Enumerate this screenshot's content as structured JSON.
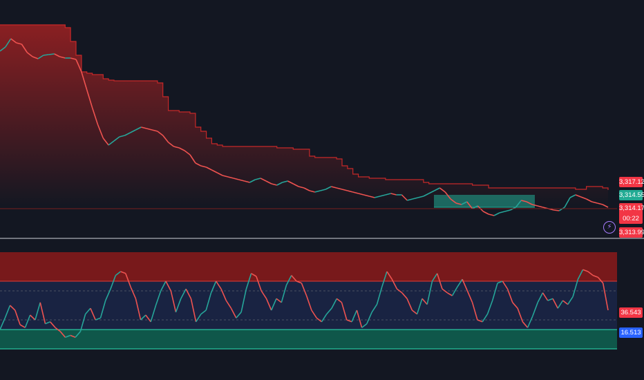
{
  "main_pane": {
    "price_labels": {
      "band_upper": "3,317.124",
      "last_close": "3,314.559",
      "price_low": "3,314.172",
      "countdown": "00:22",
      "price_bottom": "3,313.995"
    },
    "icon": "lightning-icon"
  },
  "indicator_pane": {
    "title": "",
    "value_labels": {
      "current": "36.543",
      "signal": "16.513"
    }
  },
  "colors": {
    "background": "#131722",
    "up": "#26a69a",
    "down": "#ef5350",
    "resistance": "#b22222",
    "support": "#22ab94",
    "mid_zone": "#1b2546"
  },
  "chart_data": [
    {
      "type": "line",
      "title": "",
      "xlabel": "",
      "ylabel": "",
      "series": [
        {
          "values": [
            74,
            68,
            56,
            62,
            64,
            76,
            82,
            85,
            80,
            79,
            78,
            82,
            84,
            84,
            86,
            104,
            130,
            156,
            180,
            200,
            210,
            204,
            198,
            196,
            192,
            188,
            184,
            186,
            188,
            190,
            196,
            206,
            212,
            214,
            218,
            224,
            236,
            240,
            242,
            246,
            250,
            254,
            256,
            258,
            260,
            262,
            264,
            260,
            258,
            262,
            266,
            268,
            264,
            262,
            266,
            270,
            272,
            276,
            278,
            276,
            274,
            270,
            272,
            274,
            276,
            278,
            280,
            282,
            284,
            286,
            284,
            282,
            280,
            282,
            282,
            290,
            288,
            286,
            284,
            280,
            276,
            272,
            278,
            288,
            294,
            296,
            292,
            302,
            298,
            306,
            310,
            312,
            308,
            306,
            304,
            300,
            290,
            292,
            296,
            298,
            300,
            302,
            304,
            305,
            300,
            286,
            282,
            285,
            288,
            292,
            294,
            296,
            300
          ]
        },
        {
          "values": [
            36,
            36,
            36,
            36,
            36,
            36,
            36,
            36,
            36,
            36,
            36,
            36,
            40,
            60,
            80,
            104,
            106,
            108,
            108,
            114,
            116,
            117,
            117,
            117,
            117,
            117,
            117,
            117,
            117,
            120,
            140,
            160,
            160,
            162,
            162,
            164,
            184,
            190,
            200,
            208,
            210,
            212,
            212,
            212,
            212,
            212,
            212,
            212,
            212,
            212,
            212,
            214,
            214,
            214,
            216,
            216,
            216,
            226,
            228,
            228,
            228,
            228,
            230,
            240,
            244,
            252,
            256,
            256,
            258,
            258,
            258,
            260,
            260,
            260,
            260,
            260,
            260,
            260,
            264,
            266,
            266,
            266,
            266,
            266,
            266,
            266,
            266,
            268,
            268,
            268,
            272,
            272,
            272,
            272,
            272,
            272,
            272,
            272,
            272,
            272,
            272,
            272,
            272,
            272,
            272,
            272,
            274,
            274,
            270,
            270,
            270,
            272,
            275
          ]
        }
      ],
      "ylim": [
        3313.995,
        3317.124
      ],
      "last_values": {
        "band_upper": 3317.124,
        "close": 3314.559,
        "low": 3314.172,
        "bottom": 3313.995
      }
    },
    {
      "type": "line",
      "title": "",
      "xlabel": "",
      "ylabel": "",
      "series": [
        {
          "values": [
            20,
            32,
            45,
            40,
            25,
            22,
            35,
            30,
            48,
            26,
            28,
            22,
            18,
            12,
            14,
            12,
            18,
            36,
            42,
            30,
            32,
            50,
            62,
            76,
            80,
            78,
            64,
            52,
            30,
            35,
            28,
            45,
            60,
            70,
            60,
            38,
            52,
            62,
            52,
            28,
            36,
            40,
            58,
            70,
            62,
            50,
            42,
            32,
            38,
            62,
            78,
            75,
            60,
            52,
            40,
            52,
            48,
            66,
            76,
            70,
            68,
            55,
            40,
            32,
            28,
            36,
            42,
            52,
            48,
            30,
            28,
            40,
            22,
            26,
            38,
            46,
            64,
            80,
            72,
            62,
            58,
            52,
            40,
            36,
            52,
            46,
            70,
            78,
            62,
            58,
            55,
            64,
            72,
            60,
            48,
            30,
            28,
            36,
            50,
            68,
            70,
            62,
            48,
            42,
            28,
            22,
            34,
            48,
            58,
            50,
            52,
            42,
            50,
            46,
            54,
            72,
            82,
            80,
            76,
            74,
            68,
            40
          ]
        }
      ],
      "ylim": [
        0,
        100
      ],
      "levels": {
        "upper_zone": [
          70,
          100
        ],
        "mid_zone": [
          20,
          70
        ],
        "lower_zone": [
          0,
          20
        ]
      },
      "last_values": {
        "current": 36.543,
        "signal": 16.513
      }
    }
  ]
}
